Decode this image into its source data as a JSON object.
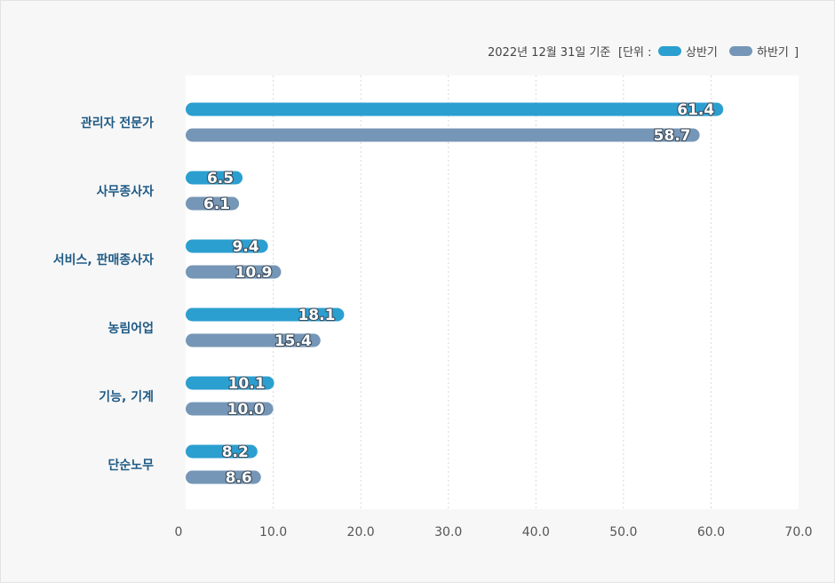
{
  "chart_data": {
    "type": "bar",
    "orientation": "horizontal",
    "note": "2022년 12월 31일 기준",
    "unit_label": "[단위 :",
    "unit_close": "]",
    "categories": [
      "관리자 전문가",
      "사무종사자",
      "서비스, 판매종사자",
      "농림어업",
      "기능, 기계",
      "단순노무"
    ],
    "series": [
      {
        "name": "상반기",
        "color": "#2b9fd0",
        "values": [
          61.4,
          6.5,
          9.4,
          18.1,
          10.1,
          8.2
        ],
        "labels": [
          "61.4",
          "6.5",
          "9.4",
          "18.1",
          "10.1",
          "8.2"
        ]
      },
      {
        "name": "하반기",
        "color": "#7596b6",
        "values": [
          58.7,
          6.1,
          10.9,
          15.4,
          10.0,
          8.6
        ],
        "labels": [
          "58.7",
          "6.1",
          "10.9",
          "15.4",
          "10.0",
          "8.6"
        ]
      }
    ],
    "xlim": [
      0,
      70
    ],
    "ticks": [
      0,
      10,
      20,
      30,
      40,
      50,
      60,
      70
    ],
    "tick_labels": [
      "0",
      "10.0",
      "20.0",
      "30.0",
      "40.0",
      "50.0",
      "60.0",
      "70.0"
    ],
    "grid": true,
    "legend_position": "top-right"
  }
}
